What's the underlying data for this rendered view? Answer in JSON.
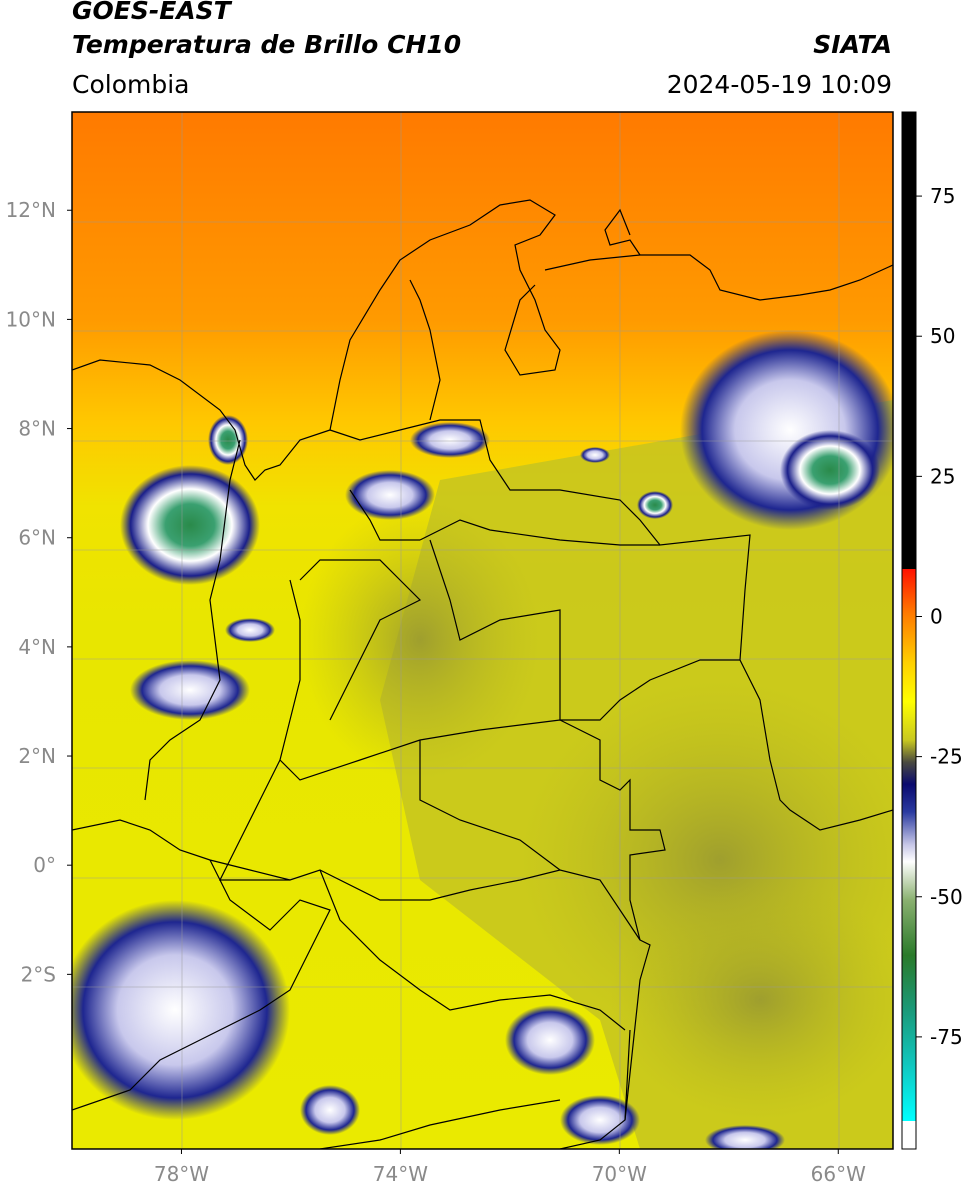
{
  "header": {
    "title_line1": "GOES-EAST",
    "title_line2": "Temperatura de Brillo CH10",
    "credit": "SIATA",
    "region": "Colombia",
    "datetime": "2024-05-19 10:09"
  },
  "map": {
    "lat_ticks": [
      {
        "value": 12,
        "label": "12°N"
      },
      {
        "value": 10,
        "label": "10°N"
      },
      {
        "value": 8,
        "label": "8°N"
      },
      {
        "value": 6,
        "label": "6°N"
      },
      {
        "value": 4,
        "label": "4°N"
      },
      {
        "value": 2,
        "label": "2°N"
      },
      {
        "value": 0,
        "label": "0°"
      },
      {
        "value": -2,
        "label": "2°S"
      }
    ],
    "lon_ticks": [
      {
        "value": -78,
        "label": "78°W"
      },
      {
        "value": -74,
        "label": "74°W"
      },
      {
        "value": -70,
        "label": "70°W"
      },
      {
        "value": -66,
        "label": "66°W"
      }
    ],
    "lat_range": [
      -5.2,
      13.8
    ],
    "lon_range": [
      -80,
      -65
    ]
  },
  "colorbar": {
    "range": [
      -95,
      90
    ],
    "ticks": [
      {
        "value": 75,
        "label": "75"
      },
      {
        "value": 50,
        "label": "50"
      },
      {
        "value": 25,
        "label": "25"
      },
      {
        "value": 0,
        "label": "0"
      },
      {
        "value": -25,
        "label": "-25"
      },
      {
        "value": -50,
        "label": "-50"
      },
      {
        "value": -75,
        "label": "-75"
      }
    ]
  }
}
